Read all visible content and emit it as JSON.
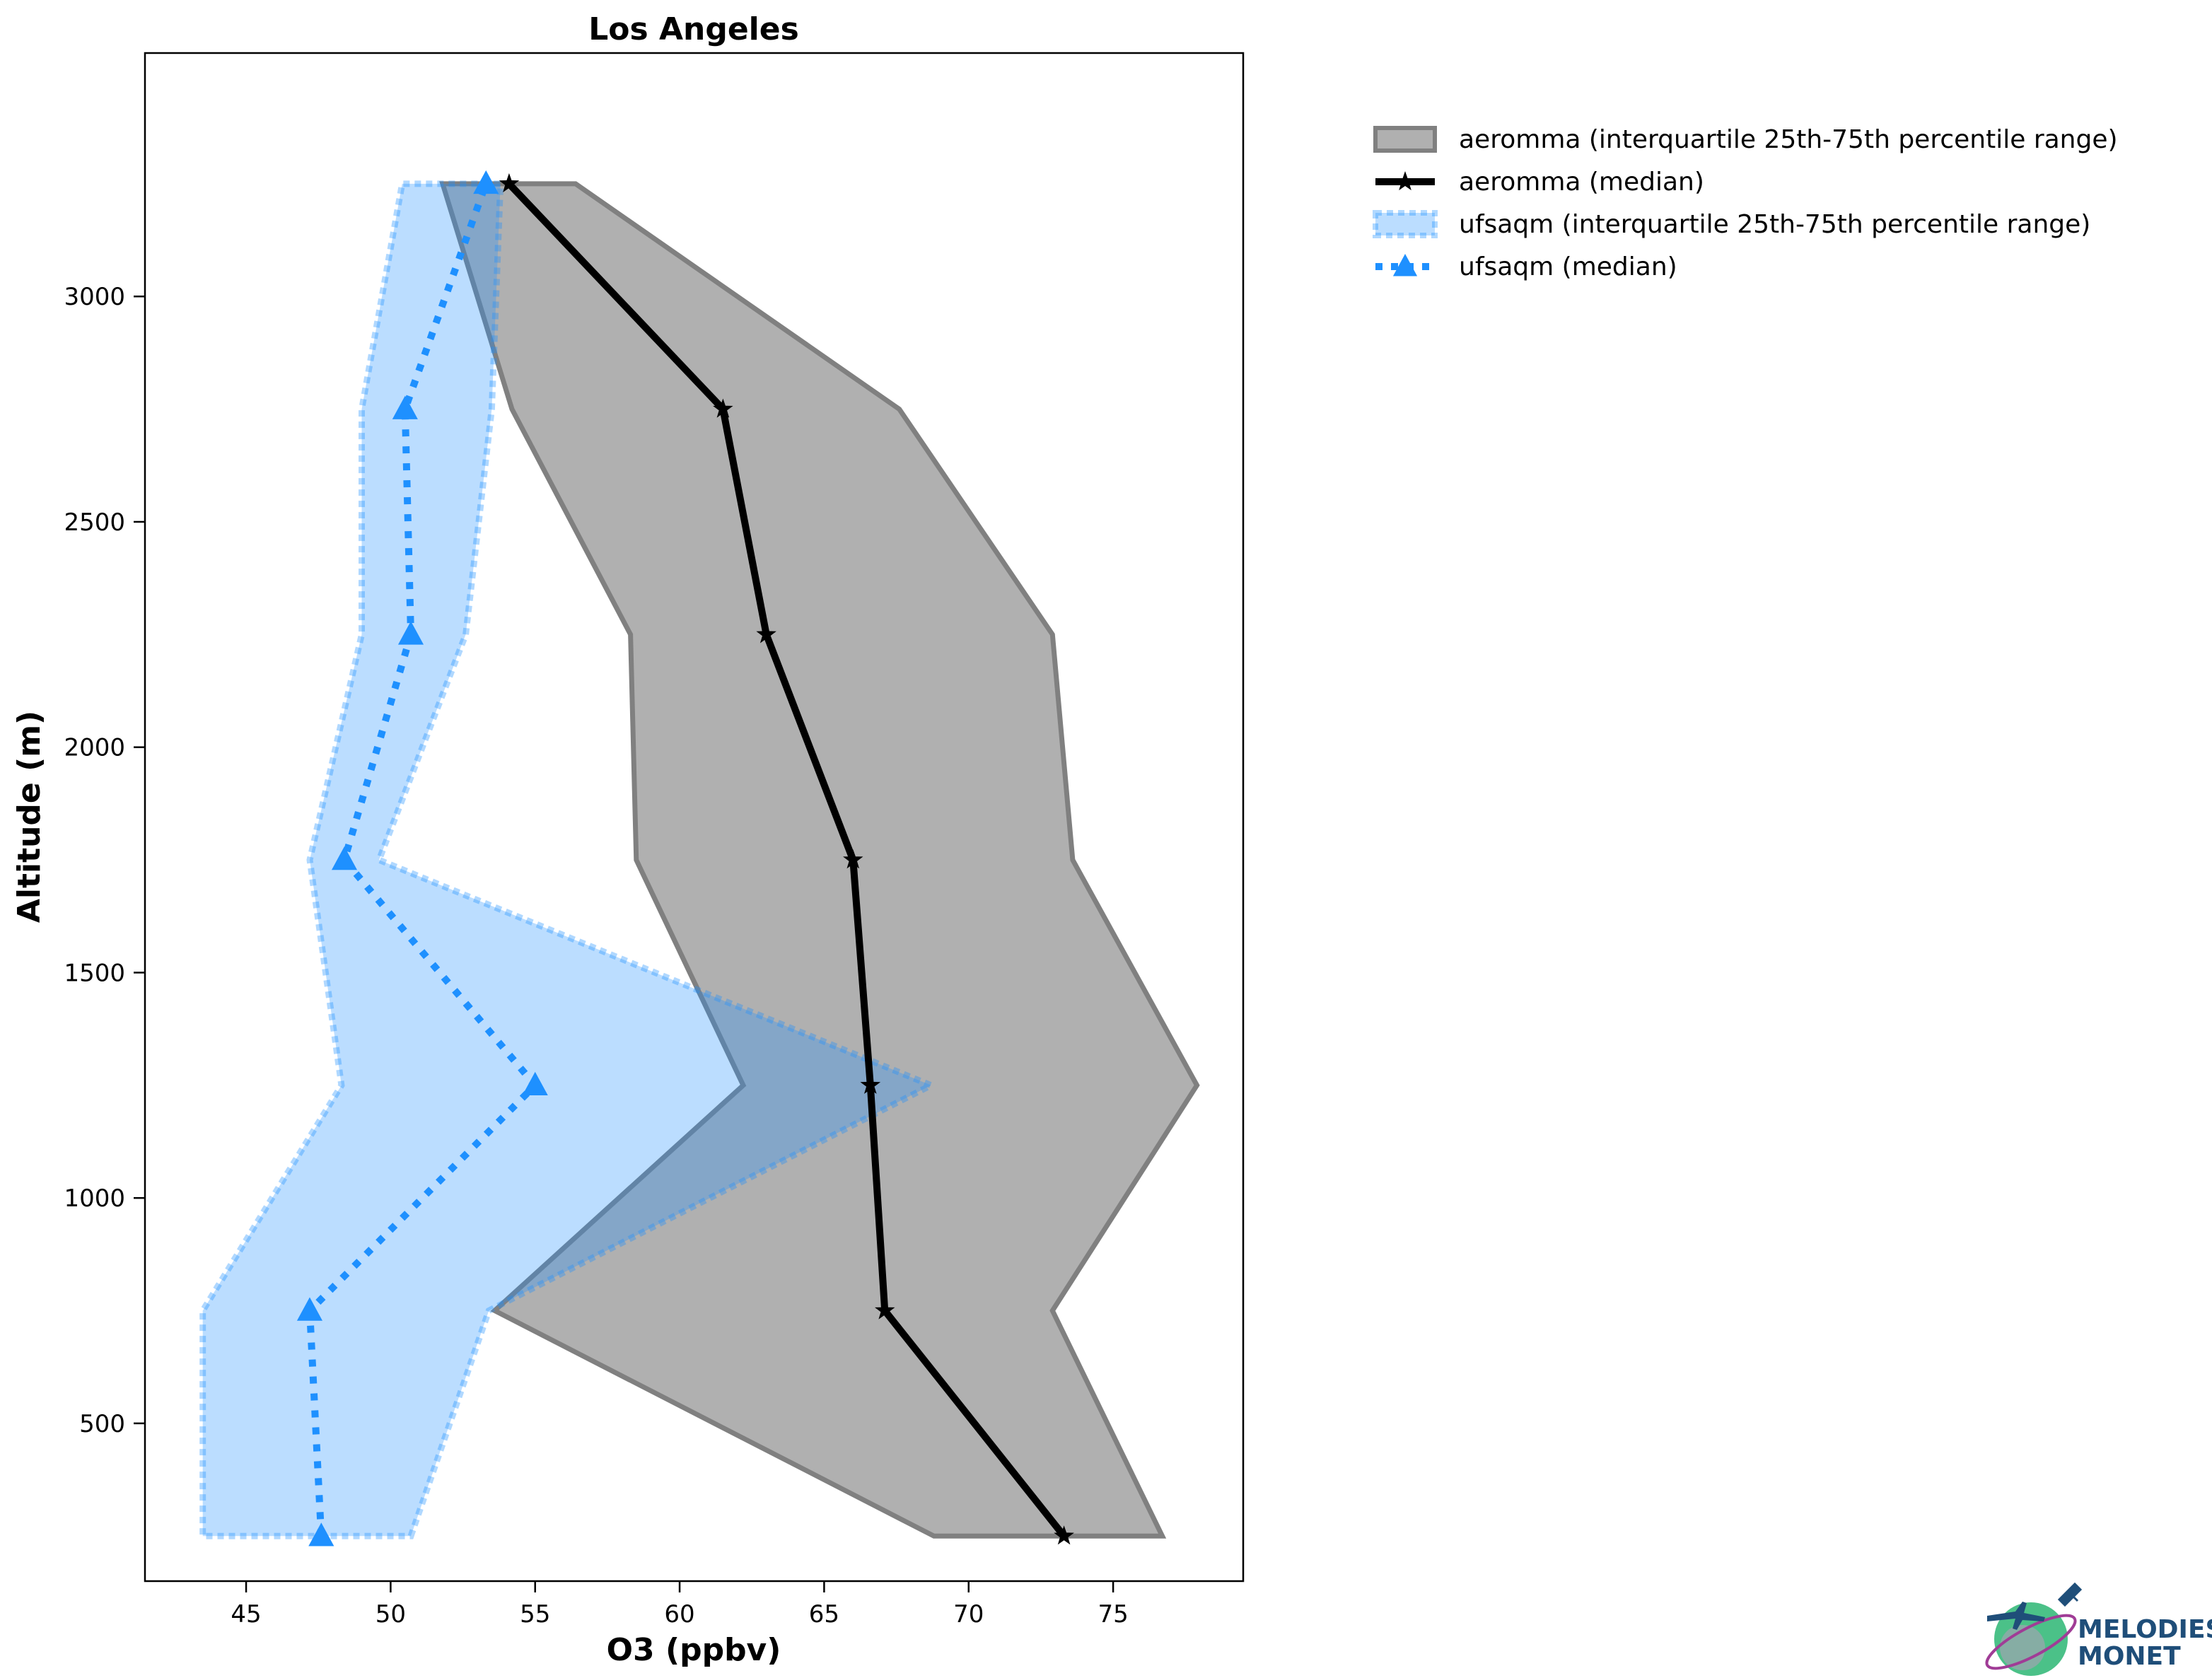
{
  "chart_data": {
    "type": "area",
    "title": "Los Angeles",
    "xlabel": "O3 (ppbv)",
    "ylabel": "Altitude (m)",
    "xlim": [
      41.5,
      79.5
    ],
    "ylim": [
      150,
      3540
    ],
    "xticks": [
      45,
      50,
      55,
      60,
      65,
      70,
      75
    ],
    "yticks": [
      500,
      1000,
      1500,
      2000,
      2500,
      3000
    ],
    "grid": false,
    "legend_position": "outside-top-right",
    "altitudes": [
      250,
      750,
      1250,
      1750,
      2250,
      2750,
      3250
    ],
    "series": [
      {
        "name": "aeromma (interquartile 25th-75th percentile range)",
        "kind": "band",
        "color": "#808080",
        "low": [
          68.8,
          53.6,
          62.2,
          58.5,
          58.3,
          54.2,
          51.8
        ],
        "high": [
          76.7,
          72.9,
          77.9,
          73.6,
          72.9,
          67.6,
          56.4
        ]
      },
      {
        "name": "aeromma (median)",
        "kind": "line",
        "color": "#000000",
        "marker": "star",
        "values": [
          73.3,
          67.1,
          66.6,
          66.0,
          63.0,
          61.5,
          54.1
        ]
      },
      {
        "name": "ufsaqm (interquartile 25th-75th percentile range)",
        "kind": "band",
        "color": "#1e90ff",
        "low": [
          43.5,
          43.5,
          48.3,
          47.2,
          49.0,
          49.0,
          50.4
        ],
        "high": [
          50.7,
          53.4,
          68.7,
          49.6,
          52.6,
          53.5,
          53.8
        ]
      },
      {
        "name": "ufsaqm (median)",
        "kind": "line",
        "color": "#1e90ff",
        "marker": "triangle",
        "linestyle": "dotted",
        "values": [
          47.6,
          47.2,
          55.0,
          48.4,
          50.7,
          50.5,
          53.3
        ]
      }
    ]
  },
  "logo": {
    "text_line1": "MELODIES",
    "text_line2": "MONET",
    "accent_color": "#1f4e79",
    "globe_color": "#2bb673"
  }
}
